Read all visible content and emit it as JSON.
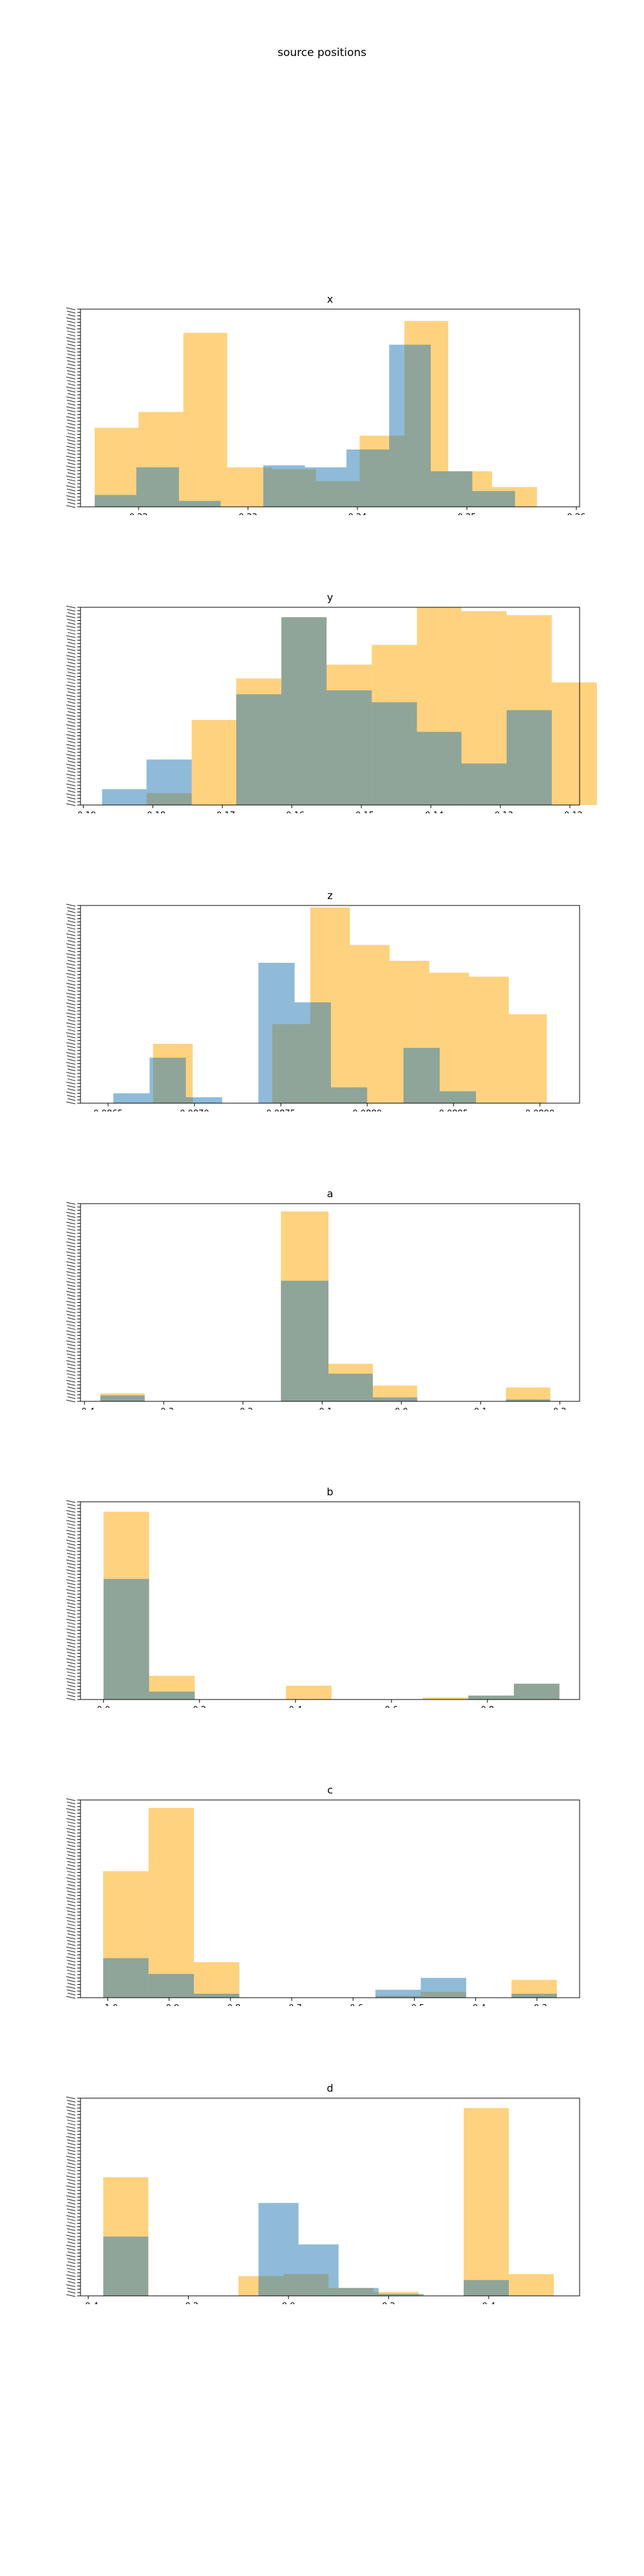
{
  "figure": {
    "title": "source positions"
  },
  "colors": {
    "series_a": "#FFA500",
    "series_b": "#1F77B4",
    "opacity": 0.5
  },
  "chart_data": [
    {
      "type": "bar",
      "title": "x",
      "xlim": [
        0.2147,
        0.2603
      ],
      "xticks": [
        0.22,
        0.23,
        0.24,
        0.25,
        0.26
      ],
      "xticklabels": [
        "0.22",
        "0.23",
        "0.24",
        "0.25",
        "0.26"
      ],
      "ylim": [
        0,
        1
      ],
      "series": [
        {
          "edges": [
            0.216,
            0.22,
            0.2241,
            0.2281,
            0.2322,
            0.2362,
            0.2402,
            0.2443,
            0.2483,
            0.2523,
            0.2564
          ],
          "values": [
            0.4,
            0.48,
            0.88,
            0.2,
            0.19,
            0.13,
            0.36,
            0.94,
            0.18,
            0.1
          ]
        },
        {
          "edges": [
            0.216,
            0.2198,
            0.2237,
            0.2275,
            0.2314,
            0.2352,
            0.239,
            0.2429,
            0.2467,
            0.2505,
            0.2544
          ],
          "values": [
            0.06,
            0.2,
            0.03,
            0.0,
            0.21,
            0.2,
            0.29,
            0.82,
            0.18,
            0.08
          ]
        }
      ]
    },
    {
      "type": "bar",
      "title": "y",
      "xlim": [
        -0.1904,
        -0.1186
      ],
      "xticks": [
        -0.19,
        -0.18,
        -0.17,
        -0.16,
        -0.15,
        -0.14,
        -0.13,
        -0.12
      ],
      "xticklabels": [
        "−0.19",
        "−0.18",
        "−0.17",
        "−0.16",
        "−0.15",
        "−0.14",
        "−0.13",
        "−0.12"
      ],
      "ylim": [
        0,
        1
      ],
      "series": [
        {
          "edges": [
            -0.1809,
            -0.1744,
            -0.168,
            -0.1615,
            -0.155,
            -0.1485,
            -0.142,
            -0.1356,
            -0.1291,
            -0.1226,
            -0.1161
          ],
          "values": [
            0.06,
            0.43,
            0.64,
            0.95,
            0.71,
            0.81,
            1.0,
            0.98,
            0.96,
            0.62
          ]
        },
        {
          "edges": [
            -0.1873,
            -0.1809,
            -0.1744,
            -0.168,
            -0.1615,
            -0.155,
            -0.1485,
            -0.142,
            -0.1356,
            -0.1291,
            -0.1226
          ],
          "values": [
            0.08,
            0.23,
            0.0,
            0.56,
            0.95,
            0.58,
            0.52,
            0.37,
            0.21,
            0.48
          ]
        }
      ]
    },
    {
      "type": "bar",
      "title": "z",
      "xlim": [
        0.08634,
        0.08923
      ],
      "xticks": [
        0.0865,
        0.087,
        0.0875,
        0.088,
        0.0885,
        0.089
      ],
      "xticklabels": [
        "0.0865",
        "0.0870",
        "0.0875",
        "0.0880",
        "0.0885",
        "0.0890"
      ],
      "ylim": [
        0,
        1
      ],
      "series": [
        {
          "edges": [
            0.08676,
            0.08699,
            0.08722,
            0.08745,
            0.08767,
            0.0879,
            0.08813,
            0.08836,
            0.08859,
            0.08882,
            0.08904
          ],
          "values": [
            0.3,
            0.0,
            0.0,
            0.4,
            0.99,
            0.8,
            0.72,
            0.66,
            0.64,
            0.45
          ]
        },
        {
          "edges": [
            0.08653,
            0.08674,
            0.08695,
            0.08716,
            0.08737,
            0.08758,
            0.08779,
            0.088,
            0.08821,
            0.08842,
            0.08863
          ],
          "values": [
            0.05,
            0.23,
            0.03,
            0.0,
            0.71,
            0.51,
            0.08,
            0.0,
            0.28,
            0.06
          ]
        }
      ]
    },
    {
      "type": "bar",
      "title": "a",
      "xlim": [
        -0.405,
        0.225
      ],
      "xticks": [
        -0.4,
        -0.3,
        -0.2,
        -0.1,
        0.0,
        0.1,
        0.2
      ],
      "xticklabels": [
        "−0.4",
        "−0.3",
        "−0.2",
        "−0.1",
        "0.0",
        "0.1",
        "0.2"
      ],
      "ylim": [
        0,
        1
      ],
      "series": [
        {
          "edges": [
            -0.38,
            -0.324,
            -0.248,
            -0.152,
            -0.092,
            -0.036,
            0.02,
            0.076,
            0.132,
            0.188,
            0.202
          ],
          "values": [
            0.04,
            0.0,
            0.0,
            0.96,
            0.19,
            0.08,
            0.0,
            0.0,
            0.07,
            0.0
          ]
        },
        {
          "edges": [
            -0.38,
            -0.324,
            -0.248,
            -0.152,
            -0.092,
            -0.036,
            0.02,
            0.076,
            0.132,
            0.188,
            0.202
          ],
          "values": [
            0.03,
            0.0,
            0.0,
            0.61,
            0.14,
            0.02,
            0.0,
            0.0,
            0.01,
            0.0
          ]
        }
      ]
    },
    {
      "type": "bar",
      "title": "b",
      "xlim": [
        -0.048,
        0.992
      ],
      "xticks": [
        0.0,
        0.2,
        0.4,
        0.6,
        0.8
      ],
      "xticklabels": [
        "0.0",
        "0.2",
        "0.4",
        "0.6",
        "0.8"
      ],
      "ylim": [
        0,
        1
      ],
      "series": [
        {
          "edges": [
            0.0,
            0.095,
            0.19,
            0.285,
            0.38,
            0.475,
            0.57,
            0.665,
            0.76,
            0.855,
            0.95
          ],
          "values": [
            0.95,
            0.12,
            0.0,
            0.0,
            0.07,
            0.0,
            0.0,
            0.01,
            0.02,
            0.08
          ]
        },
        {
          "edges": [
            0.0,
            0.095,
            0.19,
            0.285,
            0.38,
            0.475,
            0.57,
            0.665,
            0.76,
            0.855,
            0.95
          ],
          "values": [
            0.61,
            0.04,
            0.0,
            0.0,
            0.0,
            0.0,
            0.0,
            0.0,
            0.02,
            0.08
          ]
        }
      ]
    },
    {
      "type": "bar",
      "title": "c",
      "xlim": [
        -1.0445,
        -0.2305
      ],
      "xticks": [
        -1.0,
        -0.9,
        -0.8,
        -0.7,
        -0.6,
        -0.5,
        -0.4,
        -0.3
      ],
      "xticklabels": [
        "−1.0",
        "−0.9",
        "−0.8",
        "−0.7",
        "−0.6",
        "−0.5",
        "−0.4",
        "−0.3"
      ],
      "ylim": [
        0,
        1
      ],
      "series": [
        {
          "edges": [
            -1.0075,
            -0.9335,
            -0.8595,
            -0.7855,
            -0.7115,
            -0.6375,
            -0.5635,
            -0.4895,
            -0.4155,
            -0.3415,
            -0.2675
          ],
          "values": [
            0.64,
            0.96,
            0.18,
            0.0,
            0.0,
            0.0,
            0.01,
            0.03,
            0.0,
            0.09
          ]
        },
        {
          "edges": [
            -1.0075,
            -0.9335,
            -0.8595,
            -0.7855,
            -0.7115,
            -0.6375,
            -0.5635,
            -0.4895,
            -0.4155,
            -0.3415,
            -0.2675
          ],
          "values": [
            0.2,
            0.12,
            0.02,
            0.0,
            0.0,
            0.0,
            0.04,
            0.1,
            0.0,
            0.02
          ]
        }
      ]
    },
    {
      "type": "bar",
      "title": "d",
      "xlim": [
        -0.4155,
        0.5815
      ],
      "xticks": [
        -0.4,
        -0.2,
        0.0,
        0.2,
        0.4
      ],
      "xticklabels": [
        "−0.4",
        "−0.2",
        "0.0",
        "0.2",
        "0.4"
      ],
      "ylim": [
        0,
        1
      ],
      "series": [
        {
          "edges": [
            -0.37,
            -0.28,
            -0.19,
            -0.1,
            -0.01,
            0.08,
            0.17,
            0.26,
            0.35,
            0.44,
            0.53
          ],
          "values": [
            0.6,
            0.0,
            0.0,
            0.1,
            0.11,
            0.04,
            0.02,
            0.0,
            0.95,
            0.11
          ]
        },
        {
          "edges": [
            -0.37,
            -0.28,
            -0.19,
            -0.1,
            -0.06,
            0.02,
            0.1,
            0.18,
            0.27,
            0.35,
            0.44
          ],
          "values": [
            0.3,
            0.0,
            0.0,
            0.0,
            0.47,
            0.26,
            0.04,
            0.01,
            0.0,
            0.08
          ]
        }
      ]
    }
  ]
}
